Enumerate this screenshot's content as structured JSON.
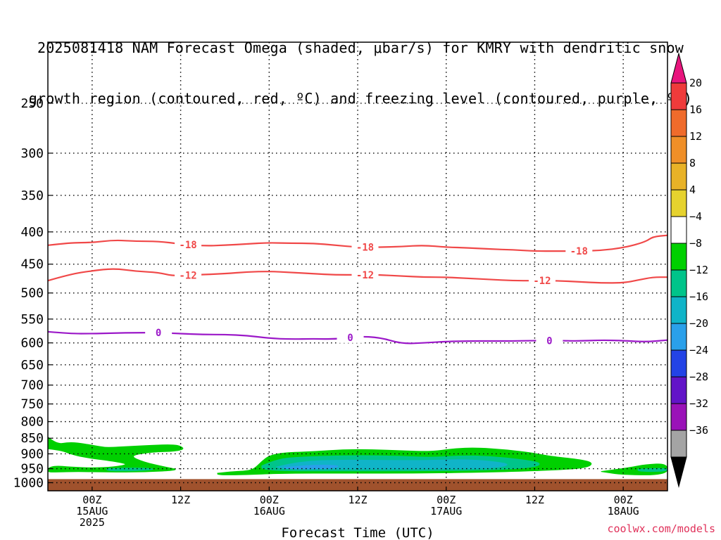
{
  "chart_data": {
    "type": "heatmap",
    "title_line1": "2025081418 NAM Forecast Omega (shaded, μbar/s) for KMRY with dendritic snow",
    "title_line2": "growth region (contoured, red, ºC) and freezing level (contoured, purple, ºC)",
    "xlabel": "Forecast Time (UTC)",
    "x_ticks": [
      {
        "hour": 6,
        "line1": "00Z",
        "line2": "15AUG",
        "line3": "2025"
      },
      {
        "hour": 18,
        "line1": "12Z",
        "line2": "",
        "line3": ""
      },
      {
        "hour": 30,
        "line1": "00Z",
        "line2": "16AUG",
        "line3": ""
      },
      {
        "hour": 42,
        "line1": "12Z",
        "line2": "",
        "line3": ""
      },
      {
        "hour": 54,
        "line1": "00Z",
        "line2": "17AUG",
        "line3": ""
      },
      {
        "hour": 66,
        "line1": "12Z",
        "line2": "",
        "line3": ""
      },
      {
        "hour": 78,
        "line1": "00Z",
        "line2": "18AUG",
        "line3": ""
      }
    ],
    "xlim_hours": [
      0,
      84
    ],
    "y_ticks": [
      250,
      300,
      350,
      400,
      450,
      500,
      550,
      600,
      650,
      700,
      750,
      800,
      850,
      900,
      950,
      1000
    ],
    "ylim_hpa": [
      200,
      1030
    ],
    "y_scale": "log-pressure",
    "grid": true,
    "surface_pressure_hpa": 987,
    "contours": [
      {
        "label": "-18",
        "color": "#f04848",
        "points": [
          [
            0,
            420
          ],
          [
            3,
            416
          ],
          [
            6,
            416
          ],
          [
            9,
            412
          ],
          [
            12,
            414
          ],
          [
            15,
            414
          ],
          [
            18,
            418
          ],
          [
            21,
            421
          ],
          [
            24,
            420
          ],
          [
            27,
            418
          ],
          [
            30,
            416
          ],
          [
            33,
            417
          ],
          [
            36,
            417
          ],
          [
            39,
            420
          ],
          [
            42,
            423
          ],
          [
            45,
            423
          ],
          [
            48,
            422
          ],
          [
            51,
            420
          ],
          [
            54,
            423
          ],
          [
            57,
            424
          ],
          [
            60,
            426
          ],
          [
            63,
            427
          ],
          [
            66,
            429
          ],
          [
            69,
            429
          ],
          [
            72,
            429
          ],
          [
            75,
            428
          ],
          [
            78,
            424
          ],
          [
            81,
            415
          ],
          [
            82,
            407
          ],
          [
            84,
            405
          ]
        ],
        "label_hours": [
          19,
          43,
          72
        ]
      },
      {
        "label": "-12",
        "color": "#f04848",
        "points": [
          [
            0,
            478
          ],
          [
            3,
            467
          ],
          [
            6,
            461
          ],
          [
            9,
            457
          ],
          [
            12,
            462
          ],
          [
            15,
            464
          ],
          [
            17,
            470
          ],
          [
            20,
            468
          ],
          [
            24,
            466
          ],
          [
            27,
            463
          ],
          [
            30,
            462
          ],
          [
            33,
            464
          ],
          [
            36,
            466
          ],
          [
            39,
            468
          ],
          [
            42,
            468
          ],
          [
            45,
            468
          ],
          [
            48,
            470
          ],
          [
            51,
            472
          ],
          [
            54,
            472
          ],
          [
            57,
            474
          ],
          [
            60,
            476
          ],
          [
            63,
            478
          ],
          [
            66,
            478
          ],
          [
            69,
            478
          ],
          [
            72,
            480
          ],
          [
            75,
            482
          ],
          [
            78,
            482
          ],
          [
            80,
            477
          ],
          [
            82,
            472
          ],
          [
            84,
            472
          ]
        ],
        "label_hours": [
          19,
          43,
          67
        ]
      },
      {
        "label": "0",
        "color": "#9b18c8",
        "points": [
          [
            0,
            576
          ],
          [
            3,
            580
          ],
          [
            6,
            580
          ],
          [
            9,
            579
          ],
          [
            12,
            578
          ],
          [
            15,
            578
          ],
          [
            18,
            580
          ],
          [
            21,
            582
          ],
          [
            24,
            582
          ],
          [
            27,
            584
          ],
          [
            30,
            590
          ],
          [
            33,
            592
          ],
          [
            36,
            591
          ],
          [
            39,
            592
          ],
          [
            42,
            586
          ],
          [
            45,
            588
          ],
          [
            48,
            602
          ],
          [
            51,
            600
          ],
          [
            54,
            597
          ],
          [
            57,
            596
          ],
          [
            60,
            596
          ],
          [
            63,
            596
          ],
          [
            66,
            595
          ],
          [
            69,
            595
          ],
          [
            72,
            596
          ],
          [
            75,
            594
          ],
          [
            78,
            595
          ],
          [
            81,
            598
          ],
          [
            84,
            594
          ]
        ],
        "label_hours": [
          15,
          41,
          68
        ]
      }
    ],
    "omega_regions": [
      {
        "value": -6,
        "color": "#00d000",
        "outline": [
          [
            -0.5,
            836
          ],
          [
            1,
            870
          ],
          [
            3,
            862
          ],
          [
            5,
            868
          ],
          [
            6,
            872
          ],
          [
            7,
            876
          ],
          [
            8,
            880
          ],
          [
            11,
            876
          ],
          [
            14,
            872
          ],
          [
            17,
            870
          ],
          [
            18,
            875
          ],
          [
            18.5,
            885
          ],
          [
            17,
            892
          ],
          [
            14,
            894
          ],
          [
            11,
            906
          ],
          [
            13,
            928
          ],
          [
            16,
            945
          ],
          [
            18,
            955
          ],
          [
            13,
            962
          ],
          [
            8,
            962
          ],
          [
            4,
            960
          ],
          [
            1,
            962
          ],
          [
            0,
            962
          ],
          [
            0,
            948
          ],
          [
            1,
            940
          ],
          [
            3,
            944
          ],
          [
            6,
            948
          ],
          [
            9,
            944
          ],
          [
            11,
            935
          ],
          [
            9,
            925
          ],
          [
            5,
            912
          ],
          [
            3,
            900
          ],
          [
            2,
            890
          ],
          [
            0,
            883
          ],
          [
            -0.5,
            883
          ]
        ]
      },
      {
        "value": -6,
        "color": "#00d000",
        "outline": [
          [
            23,
            966
          ],
          [
            25,
            960
          ],
          [
            27,
            958
          ],
          [
            28,
            950
          ],
          [
            29,
            925
          ],
          [
            30,
            906
          ],
          [
            32,
            896
          ],
          [
            36,
            893
          ],
          [
            40,
            886
          ],
          [
            44,
            886
          ],
          [
            48,
            890
          ],
          [
            52,
            893
          ],
          [
            55,
            883
          ],
          [
            58,
            880
          ],
          [
            62,
            886
          ],
          [
            66,
            898
          ],
          [
            68,
            908
          ],
          [
            72,
            918
          ],
          [
            74,
            930
          ],
          [
            73,
            948
          ],
          [
            68,
            956
          ],
          [
            60,
            962
          ],
          [
            50,
            966
          ],
          [
            40,
            966
          ],
          [
            32,
            966
          ],
          [
            26,
            972
          ],
          [
            23,
            972
          ]
        ]
      },
      {
        "value": -6,
        "color": "#00d000",
        "outline": [
          [
            75,
            960
          ],
          [
            79,
            946
          ],
          [
            81,
            936
          ],
          [
            84,
            932
          ],
          [
            84,
            972
          ],
          [
            78,
            972
          ]
        ]
      },
      {
        "value": -10,
        "color": "#00c48a",
        "outline": [
          [
            29,
            940
          ],
          [
            31,
            918
          ],
          [
            34,
            910
          ],
          [
            42,
            905
          ],
          [
            48,
            908
          ],
          [
            52,
            912
          ],
          [
            56,
            906
          ],
          [
            60,
            908
          ],
          [
            64,
            918
          ],
          [
            67,
            930
          ],
          [
            66,
            946
          ],
          [
            60,
            955
          ],
          [
            50,
            958
          ],
          [
            40,
            958
          ],
          [
            32,
            958
          ],
          [
            29,
            952
          ]
        ]
      },
      {
        "value": -10,
        "color": "#00c48a",
        "outline": [
          [
            8,
            950
          ],
          [
            12,
            946
          ],
          [
            15,
            952
          ],
          [
            12,
            958
          ],
          [
            8,
            958
          ]
        ]
      },
      {
        "value": -10,
        "color": "#00c48a",
        "outline": [
          [
            80,
            952
          ],
          [
            84,
            946
          ],
          [
            84,
            960
          ],
          [
            80,
            960
          ]
        ]
      },
      {
        "value": -14,
        "color": "#10b4c8",
        "outline": [
          [
            31,
            944
          ],
          [
            34,
            925
          ],
          [
            40,
            920
          ],
          [
            46,
            922
          ],
          [
            52,
            922
          ],
          [
            56,
            918
          ],
          [
            60,
            924
          ],
          [
            63,
            936
          ],
          [
            60,
            950
          ],
          [
            50,
            952
          ],
          [
            40,
            952
          ],
          [
            32,
            952
          ]
        ]
      },
      {
        "value": -18,
        "color": "#2aa0ea",
        "outline": [
          [
            32,
            946
          ],
          [
            36,
            936
          ],
          [
            40,
            940
          ],
          [
            38,
            950
          ],
          [
            33,
            952
          ]
        ]
      }
    ],
    "colorbar": {
      "label_values": [
        "20",
        "16",
        "12",
        "8",
        "4",
        "−4",
        "−8",
        "−12",
        "−16",
        "−20",
        "−24",
        "−28",
        "−32",
        "−36"
      ],
      "top_arrow_color": "#e8157d",
      "bottom_arrow_color": "#000000",
      "bands": [
        {
          "color": "#ef3b3b"
        },
        {
          "color": "#ef6b2b"
        },
        {
          "color": "#ef8f28"
        },
        {
          "color": "#e8b227"
        },
        {
          "color": "#e6d22e"
        },
        {
          "color": "#ffffff"
        },
        {
          "color": "#00d000"
        },
        {
          "color": "#00c48a"
        },
        {
          "color": "#10b4c8"
        },
        {
          "color": "#2aa0ea"
        },
        {
          "color": "#2343e6"
        },
        {
          "color": "#6214c8"
        },
        {
          "color": "#9a12b8"
        },
        {
          "color": "#a4a4a4"
        }
      ]
    },
    "ground_color": "#a0522d",
    "credit": "coolwx.com/models"
  }
}
